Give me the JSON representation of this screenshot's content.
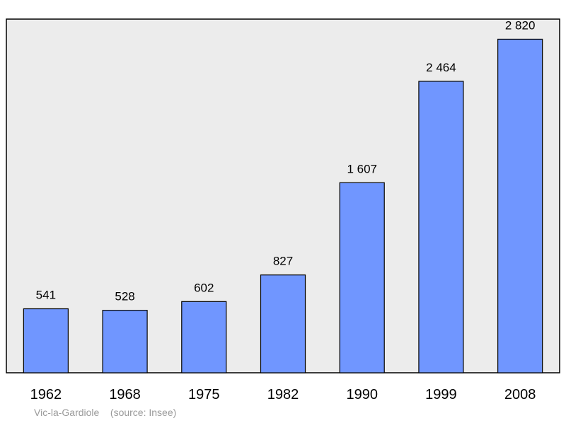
{
  "chart_data": {
    "type": "bar",
    "categories": [
      "1962",
      "1968",
      "1975",
      "1982",
      "1990",
      "1999",
      "2008"
    ],
    "values": [
      541,
      528,
      602,
      827,
      1607,
      2464,
      2820
    ],
    "value_labels": [
      "541",
      "528",
      "602",
      "827",
      "1 607",
      "2 464",
      "2 820"
    ],
    "title": "",
    "xlabel": "",
    "ylabel": "",
    "ylim": [
      0,
      2990
    ],
    "grid": false,
    "colors": {
      "bar": "#7096ff",
      "bar_stroke": "#000000",
      "plot_background": "#ececec"
    }
  },
  "caption": {
    "place": "Vic-la-Gardiole",
    "source": "(source: Insee)"
  }
}
